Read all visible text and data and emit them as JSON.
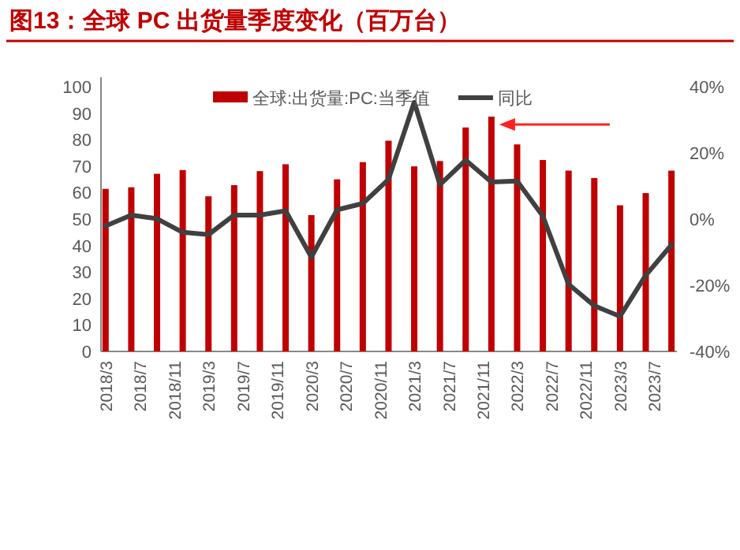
{
  "chart_data": {
    "type": "bar",
    "title": "图13：全球 PC 出货量季度变化（百万台）",
    "x": [
      "2018-03",
      "2018-06",
      "2018-09",
      "2018-12",
      "2019-03",
      "2019-06",
      "2019-09",
      "2019-12",
      "2020-03",
      "2020-06",
      "2020-09",
      "2020-12",
      "2021-03",
      "2021-06",
      "2021-09",
      "2021-12",
      "2022-03",
      "2022-06",
      "2022-09",
      "2022-12",
      "2023-03",
      "2023-06",
      "2023-09"
    ],
    "series": [
      {
        "name": "全球:出货量:PC:当季值",
        "color": "#c00000",
        "values": [
          61.4,
          62,
          67.1,
          68.5,
          58.6,
          62.8,
          68.1,
          70.7,
          51.5,
          65,
          71.5,
          79.6,
          69.9,
          71.9,
          84.6,
          88.7,
          78.2,
          72.3,
          68.3,
          65.5,
          55.2,
          59.8,
          68.3
        ]
      },
      {
        "name": "同比",
        "type": "line",
        "color": "#404040",
        "axis": "y2",
        "values": [
          -2.1,
          1.2,
          0.1,
          -4,
          -4.7,
          1.2,
          1.2,
          2.5,
          -11.5,
          2.8,
          4.7,
          12,
          35.3,
          10.4,
          17.8,
          11.2,
          11.5,
          0.9,
          -19.7,
          -26.2,
          -29.4,
          -17,
          -7.8
        ]
      }
    ],
    "xlim": [
      "2018-02-15",
      "2023-09-20"
    ],
    "xticks": [
      {
        "value": "2018-03",
        "label": "2018/3"
      },
      {
        "value": "2018-07",
        "label": "2018/7"
      },
      {
        "value": "2018-11",
        "label": "2018/11"
      },
      {
        "value": "2019-03",
        "label": "2019/3"
      },
      {
        "value": "2019-07",
        "label": "2019/7"
      },
      {
        "value": "2019-11",
        "label": "2019/11"
      },
      {
        "value": "2020-03",
        "label": "2020/3"
      },
      {
        "value": "2020-07",
        "label": "2020/7"
      },
      {
        "value": "2020-11",
        "label": "2020/11"
      },
      {
        "value": "2021-03",
        "label": "2021/3"
      },
      {
        "value": "2021-07",
        "label": "2021/7"
      },
      {
        "value": "2021-11",
        "label": "2021/11"
      },
      {
        "value": "2022-03",
        "label": "2022/3"
      },
      {
        "value": "2022-07",
        "label": "2022/7"
      },
      {
        "value": "2022-11",
        "label": "2022/11"
      },
      {
        "value": "2023-03",
        "label": "2023/3"
      },
      {
        "value": "2023-07",
        "label": "2023/7"
      }
    ],
    "ylim": [
      0,
      100
    ],
    "yticks": [
      0,
      10,
      20,
      30,
      40,
      50,
      60,
      70,
      80,
      90,
      100
    ],
    "y2lim": [
      -40,
      40
    ],
    "y2ticks": [
      {
        "value": 40,
        "label": "40%"
      },
      {
        "value": 20,
        "label": "20%"
      },
      {
        "value": 0,
        "label": "0%"
      },
      {
        "value": -20,
        "label": "-20%"
      },
      {
        "value": -40,
        "label": "-40%"
      }
    ],
    "legend": "top",
    "grid": false
  }
}
